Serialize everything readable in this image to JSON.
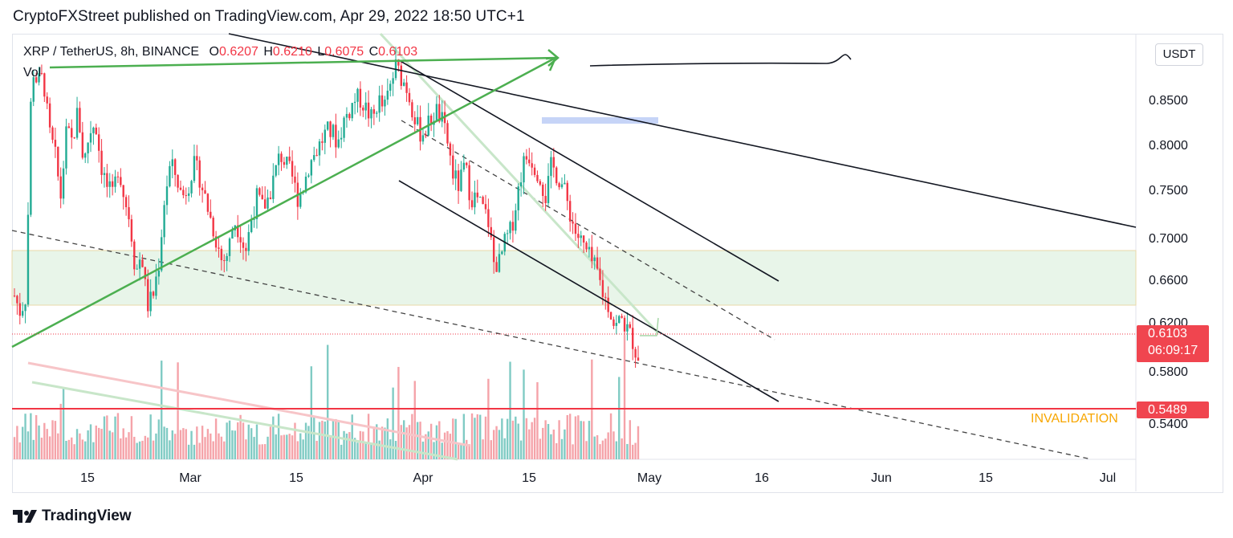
{
  "header": {
    "text": "CryptoFXStreet published on TradingView.com, Apr 29, 2022 18:50 UTC+1"
  },
  "legend": {
    "symbol": "XRP / TetherUS, 8h, BINANCE",
    "open_label": "O",
    "open": "0.6207",
    "high_label": "H",
    "high": "0.6210",
    "low_label": "L",
    "low": "0.6075",
    "close_label": "C",
    "close": "0.6103",
    "volume_label": "Vol"
  },
  "currency": "USDT",
  "footer": {
    "brand": "TradingView",
    "logo_icon": "tradingview-logo-icon"
  },
  "annotations": {
    "invalidation": "INVALIDATION"
  },
  "colors": {
    "up": "#22ab94",
    "down": "#f23645",
    "green_line": "#4caf50",
    "support_zone": "#e8f5e9",
    "invalidation_line": "#f23645",
    "invalidation_text": "#f7a600",
    "blue_box": "#b3c7f5"
  },
  "chart_data": {
    "type": "candlestick",
    "symbol": "XRP / TetherUS",
    "interval": "8h",
    "exchange": "BINANCE",
    "x_tick_labels": [
      "15",
      "Mar",
      "15",
      "Apr",
      "15",
      "May",
      "16",
      "Jun",
      "15",
      "Jul"
    ],
    "y_tick_labels": [
      "0.8500",
      "0.8000",
      "0.7500",
      "0.7000",
      "0.6600",
      "0.6200",
      "0.5800",
      "0.5400"
    ],
    "y_range": [
      0.52,
      0.91
    ],
    "last_price": "0.6103",
    "countdown": "06:09:17",
    "invalidation_price": "0.5489",
    "candles_close_path": [
      0.67,
      0.655,
      0.67,
      0.88,
      0.865,
      0.87,
      0.82,
      0.8,
      0.76,
      0.82,
      0.81,
      0.84,
      0.79,
      0.82,
      0.83,
      0.79,
      0.77,
      0.76,
      0.79,
      0.76,
      0.74,
      0.69,
      0.71,
      0.66,
      0.67,
      0.7,
      0.76,
      0.79,
      0.78,
      0.76,
      0.77,
      0.79,
      0.78,
      0.76,
      0.74,
      0.72,
      0.7,
      0.71,
      0.74,
      0.73,
      0.71,
      0.74,
      0.76,
      0.75,
      0.76,
      0.78,
      0.8,
      0.79,
      0.78,
      0.76,
      0.77,
      0.79,
      0.8,
      0.81,
      0.82,
      0.82,
      0.81,
      0.83,
      0.84,
      0.85,
      0.85,
      0.84,
      0.83,
      0.85,
      0.84,
      0.86,
      0.88,
      0.87,
      0.86,
      0.84,
      0.82,
      0.82,
      0.83,
      0.84,
      0.83,
      0.81,
      0.78,
      0.77,
      0.79,
      0.76,
      0.76,
      0.75,
      0.74,
      0.7,
      0.7,
      0.72,
      0.73,
      0.76,
      0.79,
      0.8,
      0.79,
      0.78,
      0.76,
      0.79,
      0.78,
      0.77,
      0.75,
      0.73,
      0.72,
      0.71,
      0.7,
      0.69,
      0.67,
      0.66,
      0.64,
      0.65,
      0.64,
      0.63,
      0.6103
    ]
  }
}
